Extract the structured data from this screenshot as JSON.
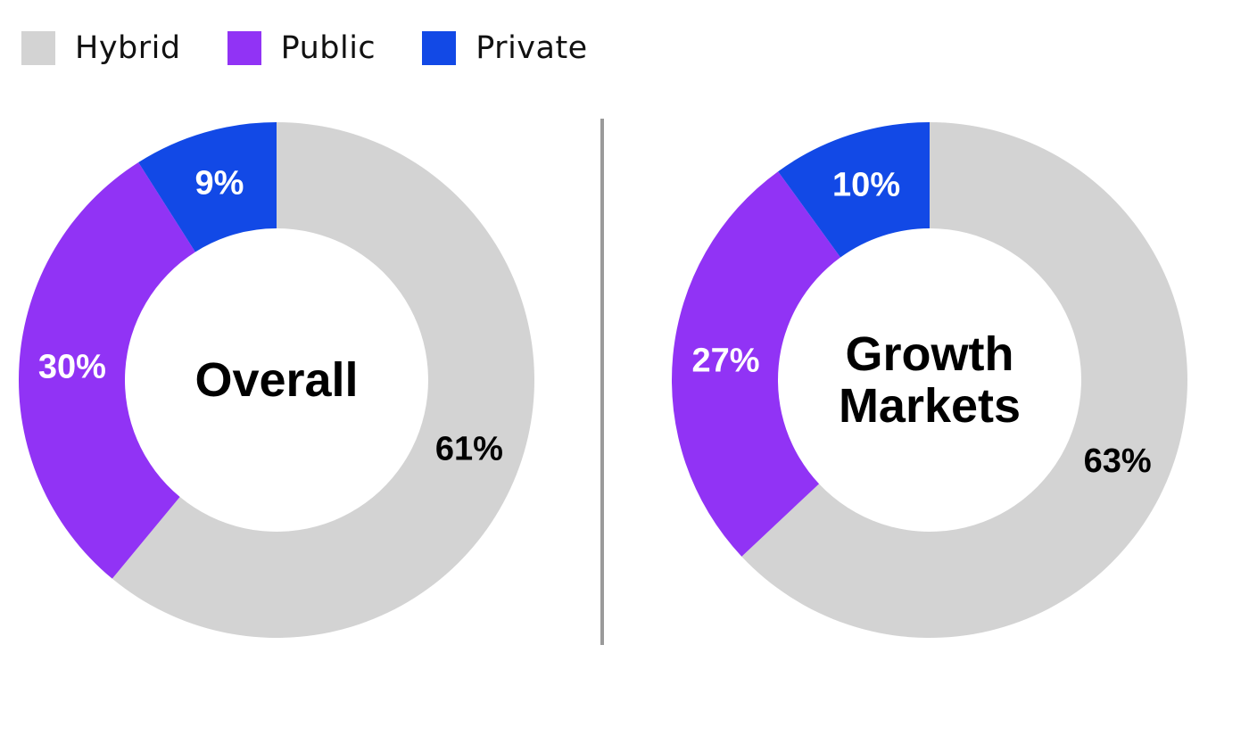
{
  "colors": {
    "Hybrid": "#d3d3d3",
    "Public": "#9133f5",
    "Private": "#1249e6"
  },
  "legend": {
    "placement": "top-left",
    "items": [
      {
        "label": "Hybrid",
        "color": "#d3d3d3"
      },
      {
        "label": "Public",
        "color": "#9133f5"
      },
      {
        "label": "Private",
        "color": "#1249e6"
      }
    ]
  },
  "chart_data": [
    {
      "type": "pie",
      "title": "Overall",
      "title_lines": [
        "Overall"
      ],
      "categories": [
        "Hybrid",
        "Public",
        "Private"
      ],
      "values": [
        61,
        30,
        9
      ],
      "labels": [
        "61%",
        "30%",
        "9%"
      ],
      "label_colors": [
        "#000000",
        "#ffffff",
        "#ffffff"
      ]
    },
    {
      "type": "pie",
      "title": "Growth Markets",
      "title_lines": [
        "Growth",
        "Markets"
      ],
      "categories": [
        "Hybrid",
        "Public",
        "Private"
      ],
      "values": [
        63,
        27,
        10
      ],
      "labels": [
        "63%",
        "27%",
        "10%"
      ],
      "label_colors": [
        "#000000",
        "#ffffff",
        "#ffffff"
      ]
    }
  ]
}
